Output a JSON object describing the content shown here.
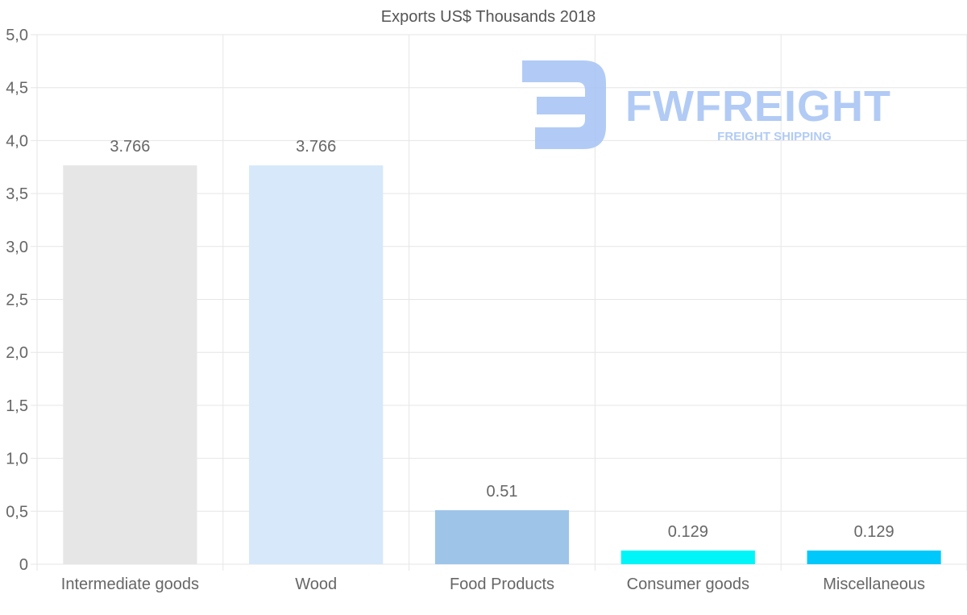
{
  "chart_data": {
    "type": "bar",
    "title": "Exports US$ Thousands 2018",
    "categories": [
      "Intermediate goods",
      "Wood",
      "Food Products",
      "Consumer goods",
      "Miscellaneous"
    ],
    "values": [
      3.766,
      3.766,
      0.51,
      0.129,
      0.129
    ],
    "data_labels": [
      "3.766",
      "3.766",
      "0.51",
      "0.129",
      "0.129"
    ],
    "bar_colors": [
      "#e6e6e6",
      "#d6e8fa",
      "#9ec5e8",
      "#00f5f8",
      "#00c8fb"
    ],
    "ylim": [
      0,
      5.0
    ],
    "y_ticks": [
      0,
      0.5,
      1.0,
      1.5,
      2.0,
      2.5,
      3.0,
      3.5,
      4.0,
      4.5,
      5.0
    ],
    "y_tick_labels": [
      "0",
      "0,5",
      "1,0",
      "1,5",
      "2,0",
      "2,5",
      "3,0",
      "3,5",
      "4,0",
      "4,5",
      "5,0"
    ],
    "xlabel": "",
    "ylabel": "",
    "grid": true
  },
  "watermark": {
    "brand": "FWFREIGHT",
    "tagline": "FREIGHT SHIPPING",
    "color": "#a4c2f4"
  },
  "colors": {
    "grid": "#e6e6e6",
    "axis_text": "#666666",
    "title_text": "#555555"
  }
}
